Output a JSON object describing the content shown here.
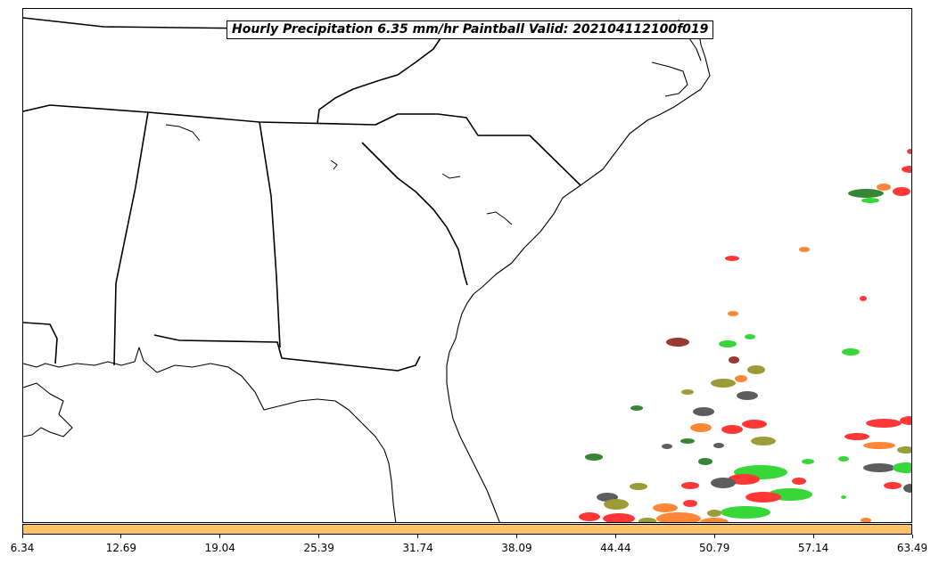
{
  "title": "Hourly Precipitation 6.35 mm/hr Paintball Valid: 202104112100f019",
  "colorbar": {
    "color": "#ffc266",
    "tick_labels": [
      "6.34",
      "12.69",
      "19.04",
      "25.39",
      "31.74",
      "38.09",
      "44.44",
      "50.79",
      "57.14",
      "63.49"
    ]
  },
  "map": {
    "region": "southeastern-united-states",
    "boundaries": [
      "coastline",
      "state-borders"
    ],
    "paintball_colors": [
      "#ff0000",
      "#00cc00",
      "#ff6600",
      "#808000",
      "#006400",
      "#303030",
      "#800000"
    ]
  }
}
